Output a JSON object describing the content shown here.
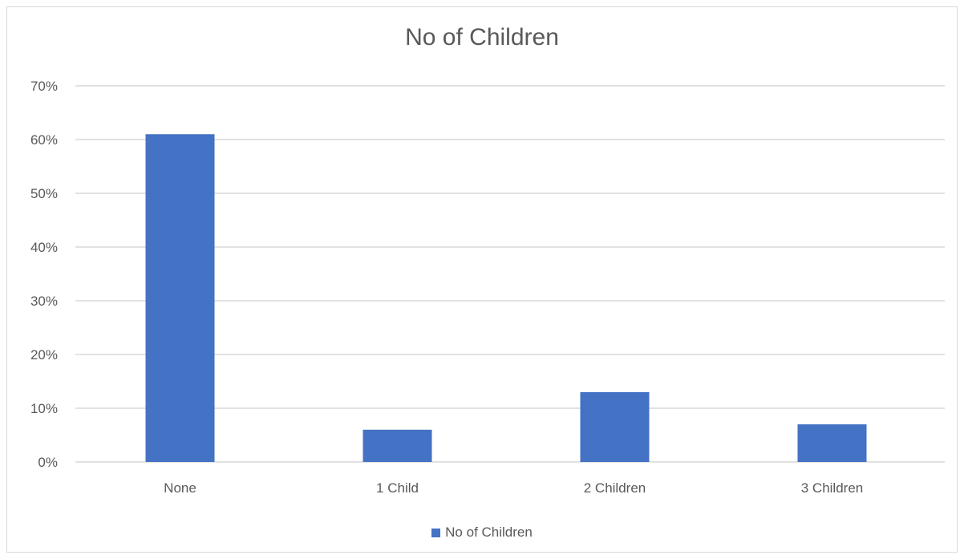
{
  "chart_data": {
    "type": "bar",
    "title": "No of Children",
    "xlabel": "",
    "ylabel": "",
    "categories": [
      "None",
      "1 Child",
      "2 Children",
      "3 Children"
    ],
    "series": [
      {
        "name": "No of Children",
        "values": [
          61,
          6,
          13,
          7
        ],
        "color": "#4472c4"
      }
    ],
    "y_ticks": [
      "0%",
      "10%",
      "20%",
      "30%",
      "40%",
      "50%",
      "60%",
      "70%"
    ],
    "ylim": [
      0,
      70
    ],
    "unit": "%",
    "grid": true,
    "legend": "bottom"
  }
}
